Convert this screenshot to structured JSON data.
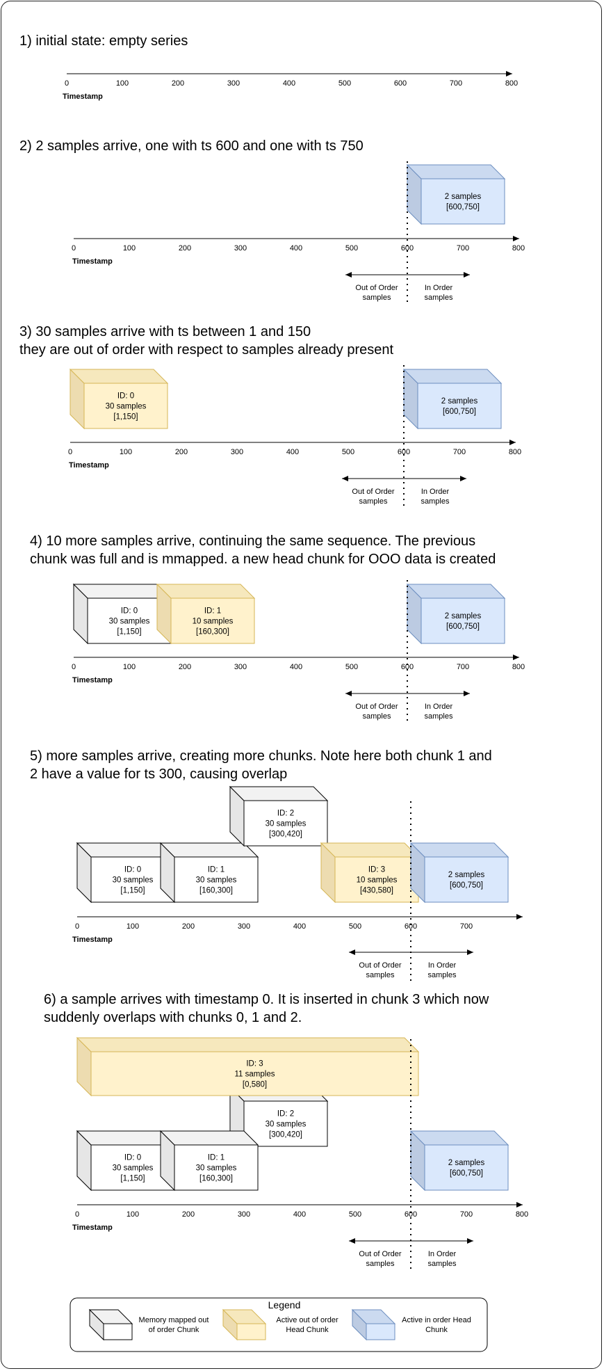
{
  "colors": {
    "mmap": {
      "front": "#ffffff",
      "top": "#f2f2f2",
      "side": "#e6e6e6",
      "stroke": "#000000"
    },
    "ooo": {
      "front": "#fff2cc",
      "top": "#f6e8bd",
      "side": "#eddcb0",
      "stroke": "#d6b656"
    },
    "inorder": {
      "front": "#dae8fc",
      "top": "#cbdaf0",
      "side": "#bccbe2",
      "stroke": "#6c8ebf"
    }
  },
  "axis": {
    "label": "Timestamp"
  },
  "sections": [
    {
      "title_lines": [
        "1) initial state: empty series"
      ],
      "ticks": [
        "0",
        "100",
        "200",
        "300",
        "400",
        "500",
        "600",
        "700",
        "800"
      ],
      "chunks": [],
      "divider": null
    },
    {
      "title_lines": [
        "2) 2 samples arrive, one with ts 600 and one with ts 750"
      ],
      "ticks": [
        "0",
        "100",
        "200",
        "300",
        "400",
        "500",
        "600",
        "700",
        "800"
      ],
      "chunks": [
        {
          "kind": "inorder",
          "lines": [
            "2 samples",
            "[600,750]"
          ]
        }
      ],
      "divider": {
        "left": [
          "Out of Order",
          "samples"
        ],
        "right": [
          "In Order",
          "samples"
        ]
      }
    },
    {
      "title_lines": [
        "3) 30 samples arrive with ts between 1 and 150",
        "they are out of order with respect to samples already present"
      ],
      "ticks": [
        "0",
        "100",
        "200",
        "300",
        "400",
        "500",
        "600",
        "700",
        "800"
      ],
      "chunks": [
        {
          "kind": "ooo",
          "lines": [
            "ID: 0",
            "30 samples",
            "[1,150]"
          ]
        },
        {
          "kind": "inorder",
          "lines": [
            "2 samples",
            "[600,750]"
          ]
        }
      ],
      "divider": {
        "left": [
          "Out of Order",
          "samples"
        ],
        "right": [
          "In Order",
          "samples"
        ]
      }
    },
    {
      "title_lines": [
        "4) 10 more samples arrive, continuing the same sequence. The previous",
        "chunk was full and is mmapped. a new head chunk for OOO data is created"
      ],
      "ticks": [
        "0",
        "100",
        "200",
        "300",
        "400",
        "500",
        "600",
        "700",
        "800"
      ],
      "chunks": [
        {
          "kind": "mmap",
          "lines": [
            "ID: 0",
            "30 samples",
            "[1,150]"
          ]
        },
        {
          "kind": "ooo",
          "lines": [
            "ID: 1",
            "10 samples",
            "[160,300]"
          ]
        },
        {
          "kind": "inorder",
          "lines": [
            "2 samples",
            "[600,750]"
          ]
        }
      ],
      "divider": {
        "left": [
          "Out of Order",
          "samples"
        ],
        "right": [
          "In Order",
          "samples"
        ]
      }
    },
    {
      "title_lines": [
        "5) more samples arrive, creating more chunks. Note here both chunk 1 and",
        "2 have a value for ts 300, causing overlap"
      ],
      "ticks": [
        "0",
        "100",
        "200",
        "300",
        "400",
        "500",
        "600",
        "700"
      ],
      "chunks": [
        {
          "kind": "mmap",
          "lines": [
            "ID: 0",
            "30 samples",
            "[1,150]"
          ]
        },
        {
          "kind": "mmap",
          "lines": [
            "ID: 1",
            "30 samples",
            "[160,300]"
          ]
        },
        {
          "kind": "mmap",
          "lines": [
            "ID: 2",
            "30 samples",
            "[300,420]"
          ]
        },
        {
          "kind": "ooo",
          "lines": [
            "ID: 3",
            "10 samples",
            "[430,580]"
          ]
        },
        {
          "kind": "inorder",
          "lines": [
            "2 samples",
            "[600,750]"
          ]
        }
      ],
      "divider": {
        "left": [
          "Out of Order",
          "samples"
        ],
        "right": [
          "In Order",
          "samples"
        ]
      }
    },
    {
      "title_lines": [
        "6) a sample arrives with timestamp 0. It is inserted in chunk 3 which now",
        "suddenly overlaps with chunks 0, 1 and 2."
      ],
      "ticks": [
        "0",
        "100",
        "200",
        "300",
        "400",
        "500",
        "600",
        "700",
        "800"
      ],
      "chunks": [
        {
          "kind": "mmap",
          "lines": [
            "ID: 2",
            "30 samples",
            "[300,420]"
          ]
        },
        {
          "kind": "ooo",
          "lines": [
            "ID: 3",
            "11 samples",
            "[0,580]"
          ]
        },
        {
          "kind": "mmap",
          "lines": [
            "ID: 0",
            "30 samples",
            "[1,150]"
          ]
        },
        {
          "kind": "mmap",
          "lines": [
            "ID: 1",
            "30 samples",
            "[160,300]"
          ]
        },
        {
          "kind": "inorder",
          "lines": [
            "2 samples",
            "[600,750]"
          ]
        }
      ],
      "divider": {
        "left": [
          "Out of Order",
          "samples"
        ],
        "right": [
          "In Order",
          "samples"
        ]
      }
    }
  ],
  "legend": {
    "title": "Legend",
    "items": [
      {
        "kind": "mmap",
        "lines": [
          "Memory mapped out",
          "of order Chunk"
        ]
      },
      {
        "kind": "ooo",
        "lines": [
          "Active out of order",
          "Head Chunk"
        ]
      },
      {
        "kind": "inorder",
        "lines": [
          "Active in order Head",
          "Chunk"
        ]
      }
    ]
  }
}
